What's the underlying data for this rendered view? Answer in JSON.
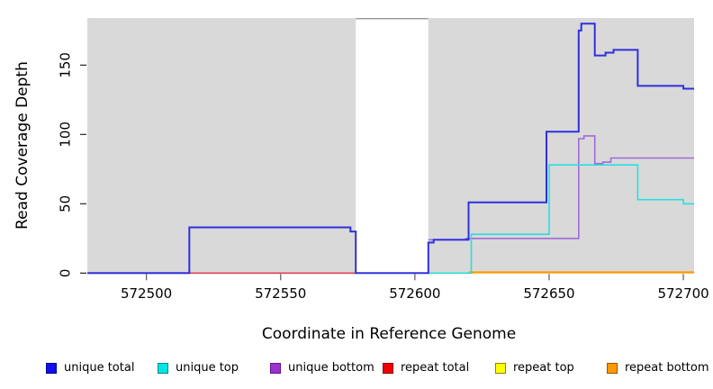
{
  "chart_data": {
    "type": "line",
    "step": true,
    "title": "",
    "xlabel": "Coordinate in Reference Genome",
    "ylabel": "Read Coverage Depth",
    "xlim": [
      572478,
      572704
    ],
    "ylim": [
      0,
      184
    ],
    "x_ticks": [
      572500,
      572550,
      572600,
      572650,
      572700
    ],
    "y_ticks": [
      0,
      50,
      100,
      150
    ],
    "grid": false,
    "panel_bg": "#d9d9d9",
    "gap_band": {
      "x0": 572578,
      "x1": 572605,
      "color": "#ffffff",
      "top_border_color": "#999999"
    },
    "series": [
      {
        "name": "repeat total",
        "color": "#dd4455",
        "width": 1.6,
        "points": [
          [
            572478,
            0
          ],
          [
            572578,
            0
          ]
        ]
      },
      {
        "name": "repeat top",
        "color": "#f2e300",
        "width": 1.6,
        "points": [
          [
            572605,
            0
          ],
          [
            572622,
            0
          ]
        ]
      },
      {
        "name": "repeat bottom",
        "color": "#ff9800",
        "width": 2.2,
        "points": [
          [
            572620,
            0.5
          ],
          [
            572704,
            0.5
          ]
        ]
      },
      {
        "name": "unique bottom",
        "color": "#a06ad8",
        "width": 1.6,
        "points": [
          [
            572605,
            24
          ],
          [
            572619,
            25
          ],
          [
            572661,
            97
          ],
          [
            572663,
            99
          ],
          [
            572667,
            79
          ],
          [
            572670,
            80
          ],
          [
            572673,
            83
          ],
          [
            572704,
            83
          ]
        ]
      },
      {
        "name": "unique top",
        "color": "#2adede",
        "width": 1.6,
        "points": [
          [
            572605,
            0
          ],
          [
            572621,
            28
          ],
          [
            572650,
            78
          ],
          [
            572683,
            53
          ],
          [
            572700,
            50
          ],
          [
            572704,
            50
          ]
        ]
      },
      {
        "name": "unique total",
        "color": "#3030dd",
        "width": 2,
        "points": [
          [
            572478,
            0
          ],
          [
            572516,
            33
          ],
          [
            572576,
            30
          ],
          [
            572578,
            0
          ],
          [
            572605,
            22
          ],
          [
            572607,
            24
          ],
          [
            572620,
            51
          ],
          [
            572649,
            102
          ],
          [
            572661,
            175
          ],
          [
            572662,
            180
          ],
          [
            572667,
            157
          ],
          [
            572671,
            159
          ],
          [
            572674,
            161
          ],
          [
            572683,
            135
          ],
          [
            572700,
            133
          ],
          [
            572704,
            133
          ]
        ]
      }
    ],
    "legend": [
      {
        "label": "unique total",
        "fill": "#1010ee",
        "border": "#000099"
      },
      {
        "label": "unique top",
        "fill": "#00e6e6",
        "border": "#008888"
      },
      {
        "label": "unique bottom",
        "fill": "#9933cc",
        "border": "#661199"
      },
      {
        "label": "repeat total",
        "fill": "#ee0000",
        "border": "#880000"
      },
      {
        "label": "repeat top",
        "fill": "#ffff00",
        "border": "#888800"
      },
      {
        "label": "repeat bottom",
        "fill": "#ff9900",
        "border": "#995500"
      }
    ],
    "legend_position": "bottom"
  }
}
